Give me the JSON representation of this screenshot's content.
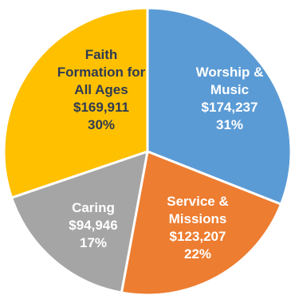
{
  "chart_data": {
    "type": "pie",
    "title": "",
    "slices": [
      {
        "label": "Worship & Music",
        "label_lines": [
          "Worship &",
          "Music"
        ],
        "value": 174237,
        "value_text": "$174,237",
        "percent": 31,
        "percent_text": "31%",
        "color": "#5B9BD5",
        "text_color": "#ffffff"
      },
      {
        "label": "Service & Missions",
        "label_lines": [
          "Service &",
          "Missions"
        ],
        "value": 123207,
        "value_text": "$123,207",
        "percent": 22,
        "percent_text": "22%",
        "color": "#ED7D31",
        "text_color": "#ffffff"
      },
      {
        "label": "Caring",
        "label_lines": [
          "Caring"
        ],
        "value": 94946,
        "value_text": "$94,946",
        "percent": 17,
        "percent_text": "17%",
        "color": "#A5A5A5",
        "text_color": "#ffffff"
      },
      {
        "label": "Faith Formation for All Ages",
        "label_lines": [
          "Faith",
          "Formation for",
          "All Ages"
        ],
        "value": 169911,
        "value_text": "$169,911",
        "percent": 30,
        "percent_text": "30%",
        "color": "#FFC000",
        "text_color": "#2F3B52"
      }
    ]
  }
}
